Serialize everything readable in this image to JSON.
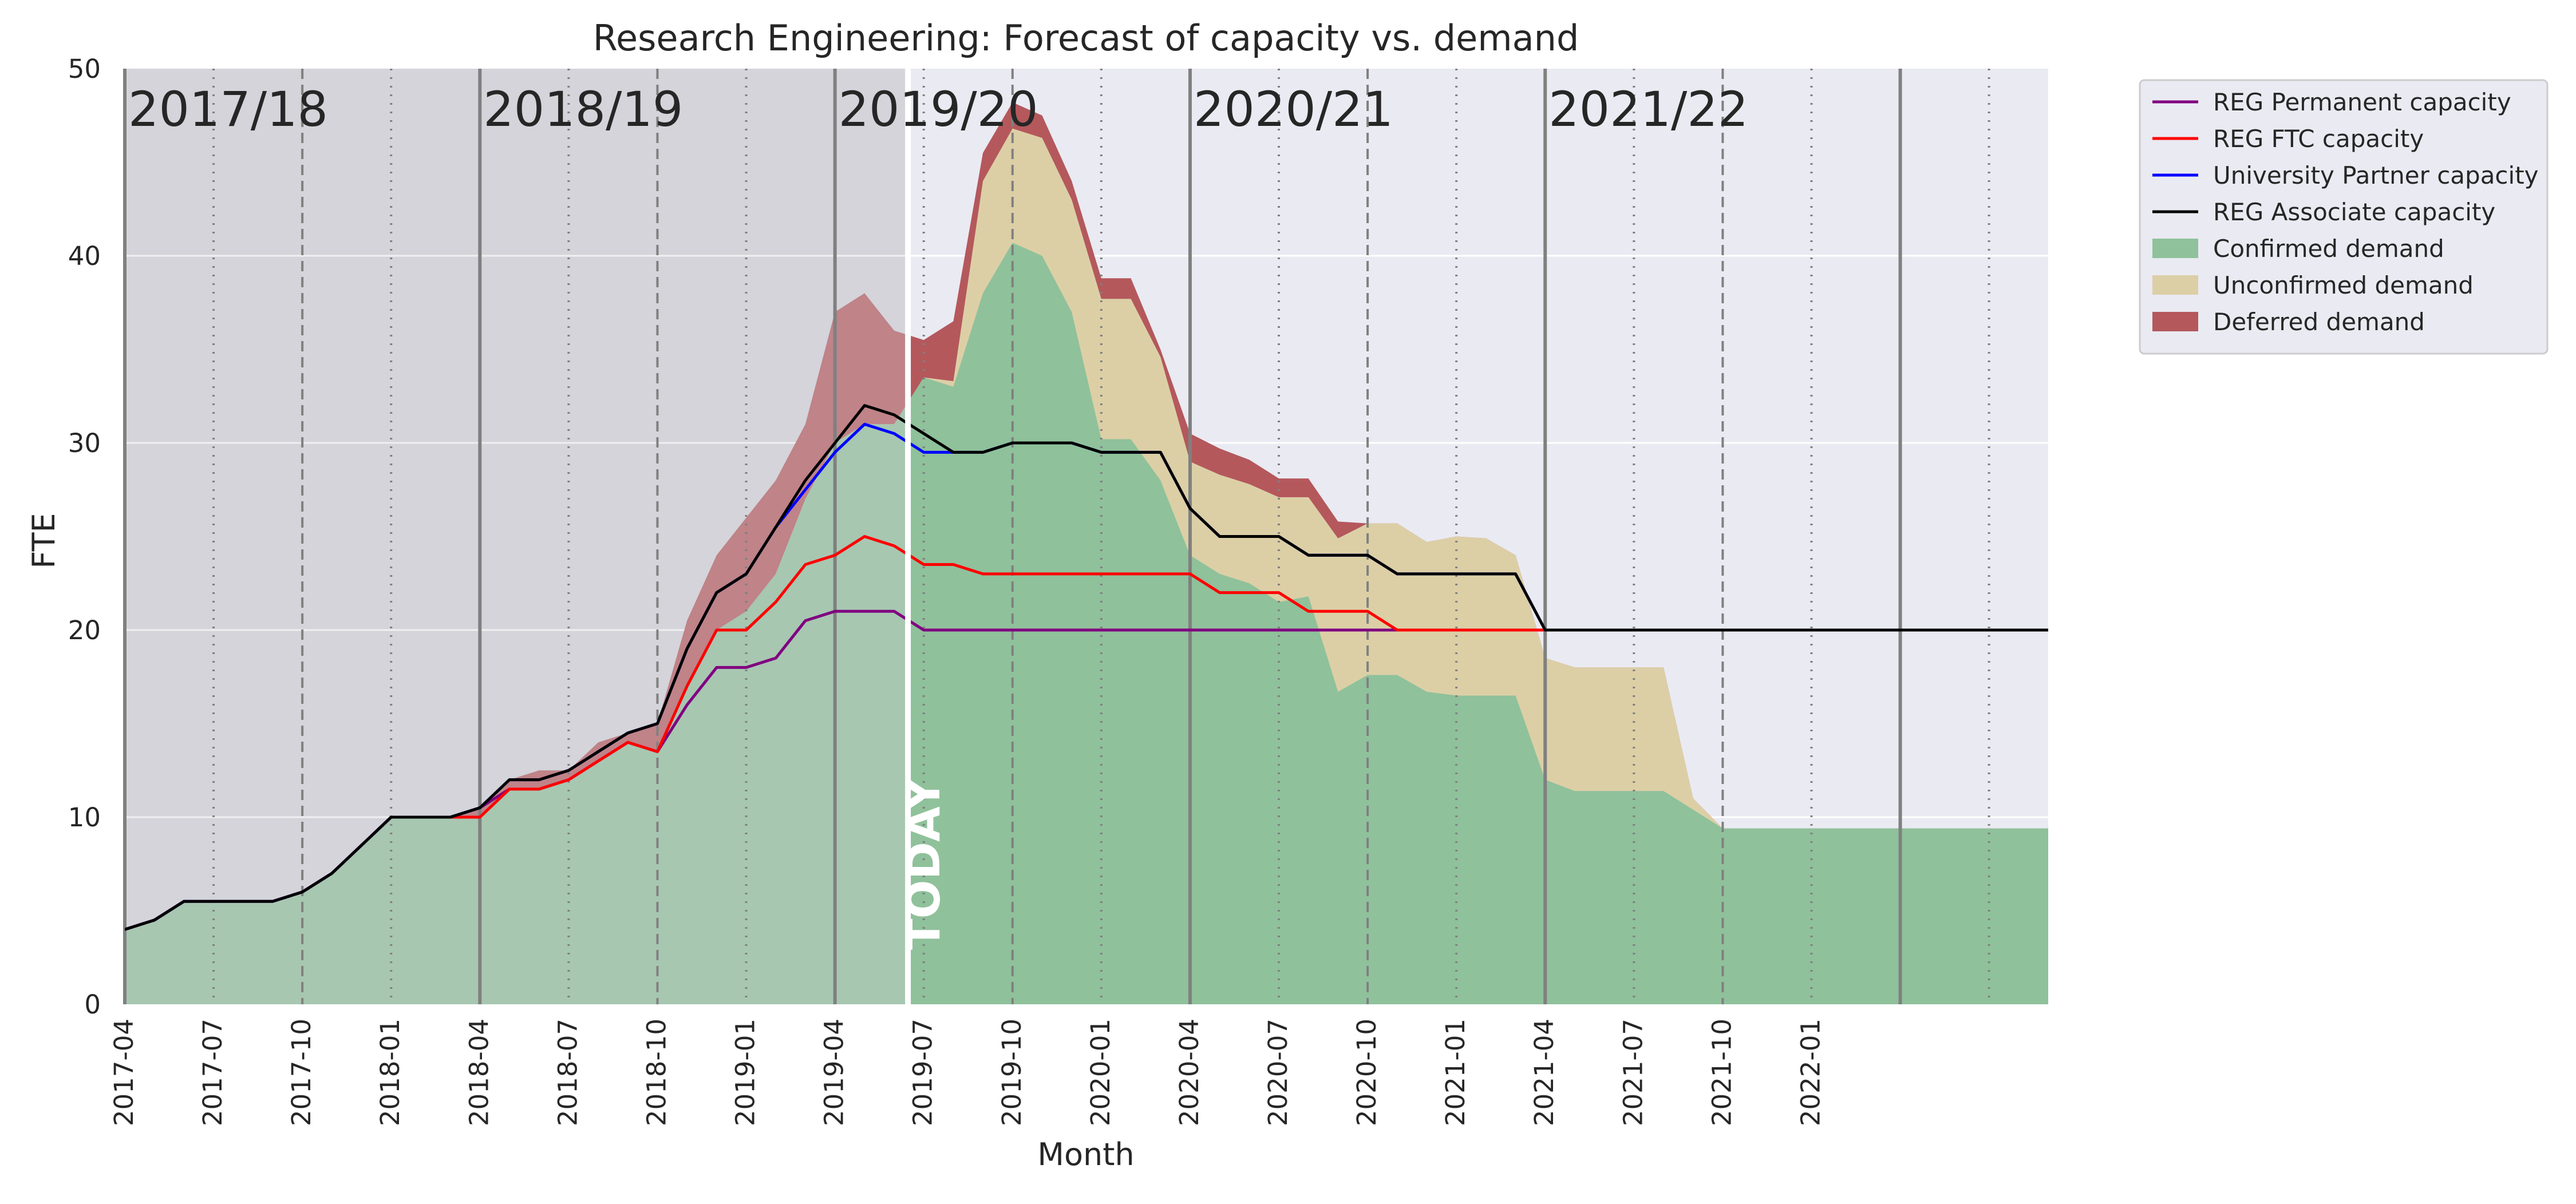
{
  "chart_data": {
    "type": "area",
    "title": "Research Engineering: Forecast of capacity vs. demand",
    "xlabel": "Month",
    "ylabel": "FTE",
    "xlim": [
      "2017-04",
      "2022-09"
    ],
    "ylim": [
      0,
      50
    ],
    "grid": true,
    "legend_position": "outside-right",
    "x_ticks": [
      "2017-04",
      "2017-07",
      "2017-10",
      "2018-01",
      "2018-04",
      "2018-07",
      "2018-10",
      "2019-01",
      "2019-04",
      "2019-07",
      "2019-10",
      "2020-01",
      "2020-04",
      "2020-07",
      "2020-10",
      "2021-01",
      "2021-04",
      "2021-07",
      "2021-10",
      "2022-01"
    ],
    "y_ticks": [
      "0",
      "10",
      "20",
      "30",
      "40",
      "50"
    ],
    "months": [
      "2017-04",
      "2017-05",
      "2017-06",
      "2017-07",
      "2017-08",
      "2017-09",
      "2017-10",
      "2017-11",
      "2017-12",
      "2018-01",
      "2018-02",
      "2018-03",
      "2018-04",
      "2018-05",
      "2018-06",
      "2018-07",
      "2018-08",
      "2018-09",
      "2018-10",
      "2018-11",
      "2018-12",
      "2019-01",
      "2019-02",
      "2019-03",
      "2019-04",
      "2019-05",
      "2019-06",
      "2019-07",
      "2019-08",
      "2019-09",
      "2019-10",
      "2019-11",
      "2019-12",
      "2020-01",
      "2020-02",
      "2020-03",
      "2020-04",
      "2020-05",
      "2020-06",
      "2020-07",
      "2020-08",
      "2020-09",
      "2020-10",
      "2020-11",
      "2020-12",
      "2021-01",
      "2021-02",
      "2021-03",
      "2021-04",
      "2021-05",
      "2021-06",
      "2021-07",
      "2021-08",
      "2021-09",
      "2021-10",
      "2021-11",
      "2021-12",
      "2022-01",
      "2022-02",
      "2022-03",
      "2022-04",
      "2022-05",
      "2022-06",
      "2022-07",
      "2022-08",
      "2022-09"
    ],
    "financial_years": [
      "2017/18",
      "2018/19",
      "2019/20",
      "2020/21",
      "2021/22"
    ],
    "today_label": "TODAY",
    "today_date": "2019-06-15",
    "colors": {
      "REG Permanent capacity": "#800080",
      "REG FTC capacity": "#ff0000",
      "University Partner capacity": "#0000ff",
      "REG Associate capacity": "#000000",
      "Confirmed demand": "#8fc19b",
      "Unconfirmed demand": "#dccfa6",
      "Deferred demand": "#b4585c",
      "past_shade": "#d4d5da",
      "plot_bg": "#eaeaf2"
    },
    "capacity_series": [
      {
        "name": "REG Permanent capacity",
        "values": [
          4,
          4.5,
          5.5,
          5.5,
          5.5,
          5.5,
          6,
          7,
          8.5,
          10,
          10,
          10,
          10.5,
          11.5,
          11.5,
          12,
          13,
          14,
          13.5,
          16,
          18,
          18,
          18.5,
          20.5,
          21,
          21,
          21,
          20,
          20,
          20,
          20,
          20,
          20,
          20,
          20,
          20,
          20,
          20,
          20,
          20,
          20,
          20,
          20,
          20,
          20,
          20,
          20,
          20,
          20,
          20,
          20,
          20,
          20,
          20,
          20,
          20,
          20,
          20,
          20,
          20,
          20,
          20,
          20,
          20,
          20,
          20
        ]
      },
      {
        "name": "REG FTC capacity",
        "values": [
          4,
          4.5,
          5.5,
          5.5,
          5.5,
          5.5,
          6,
          7,
          8.5,
          10,
          10,
          10,
          10,
          11.5,
          11.5,
          12,
          13,
          14,
          13.5,
          17,
          20,
          20,
          21.5,
          23.5,
          24,
          25,
          24.5,
          23.5,
          23.5,
          23,
          23,
          23,
          23,
          23,
          23,
          23,
          23,
          22,
          22,
          22,
          21,
          21,
          21,
          20,
          20,
          20,
          20,
          20,
          20,
          20,
          20,
          20,
          20,
          20,
          20,
          20,
          20,
          20,
          20,
          20,
          20,
          20,
          20,
          20,
          20,
          20
        ]
      },
      {
        "name": "University Partner capacity",
        "values": [
          4,
          4.5,
          5.5,
          5.5,
          5.5,
          5.5,
          6,
          7,
          8.5,
          10,
          10,
          10,
          10.5,
          12,
          12,
          12.5,
          13.5,
          14.5,
          15,
          19,
          22,
          23,
          25.5,
          27.5,
          29.5,
          31,
          30.5,
          29.5,
          29.5,
          29.5,
          30,
          30,
          30,
          29.5,
          29.5,
          29.5,
          26.5,
          25,
          25,
          25,
          24,
          24,
          24,
          23,
          23,
          23,
          23,
          23,
          20,
          20,
          20,
          20,
          20,
          20,
          20,
          20,
          20,
          20,
          20,
          20,
          20,
          20,
          20,
          20,
          20,
          20
        ]
      },
      {
        "name": "REG Associate capacity",
        "values": [
          4,
          4.5,
          5.5,
          5.5,
          5.5,
          5.5,
          6,
          7,
          8.5,
          10,
          10,
          10,
          10.5,
          12,
          12,
          12.5,
          13.5,
          14.5,
          15,
          19,
          22,
          23,
          25.5,
          28,
          30,
          32,
          31.5,
          30.5,
          29.5,
          29.5,
          30,
          30,
          30,
          29.5,
          29.5,
          29.5,
          26.5,
          25,
          25,
          25,
          24,
          24,
          24,
          23,
          23,
          23,
          23,
          23,
          20,
          20,
          20,
          20,
          20,
          20,
          20,
          20,
          20,
          20,
          20,
          20,
          20,
          20,
          20,
          20,
          20,
          20
        ]
      }
    ],
    "demand_series": [
      {
        "name": "Confirmed demand",
        "values": [
          4,
          4.5,
          5.5,
          5.5,
          5.5,
          5.5,
          6,
          7,
          8.5,
          10,
          10,
          10,
          10,
          11.5,
          11.5,
          12,
          13,
          14,
          13.5,
          17,
          20,
          21,
          23,
          27,
          30,
          31,
          31,
          33.5,
          33,
          38,
          40.7,
          40,
          37,
          30.2,
          30.2,
          28,
          24,
          23,
          22.5,
          21.5,
          21.8,
          16.7,
          17.6,
          17.6,
          16.7,
          16.5,
          16.5,
          16.5,
          12,
          11.4,
          11.4,
          11.4,
          11.4,
          10.4,
          9.4,
          9.4,
          9.4,
          9.4,
          9.4,
          9.4,
          9.4,
          9.4,
          9.4,
          9.4,
          9.4,
          9.4
        ]
      },
      {
        "name": "Unconfirmed demand",
        "values": [
          4,
          4.5,
          5.5,
          5.5,
          5.5,
          5.5,
          6,
          7,
          8.5,
          10,
          10,
          10,
          10,
          11.5,
          11.5,
          12,
          13,
          14,
          13.5,
          17,
          20,
          21,
          23,
          27,
          30,
          31,
          31,
          33.5,
          33.3,
          44,
          46.8,
          46.3,
          43,
          37.7,
          37.7,
          34.6,
          29,
          28.3,
          27.8,
          27.1,
          27.1,
          24.9,
          25.7,
          25.7,
          24.7,
          25,
          24.9,
          24,
          18.5,
          18,
          18,
          18,
          18,
          11,
          9.4,
          9.4,
          9.4,
          9.4,
          9.4,
          9.4,
          9.4,
          9.4,
          9.4,
          9.4,
          9.4,
          9.4
        ]
      },
      {
        "name": "Deferred demand",
        "values": [
          4,
          4.5,
          5.5,
          5.5,
          5.5,
          5.5,
          6,
          7,
          8.5,
          10,
          10,
          10,
          10.5,
          12,
          12.5,
          12.5,
          14,
          14.5,
          15,
          20.5,
          24,
          26,
          28,
          31,
          37,
          38,
          36,
          35.5,
          36.5,
          45.5,
          48.2,
          47.5,
          44,
          38.8,
          38.8,
          35,
          30.5,
          29.7,
          29.1,
          28.1,
          28.1,
          25.8,
          25.7,
          25.7,
          24.7,
          25,
          24.9,
          24,
          18.5,
          18,
          18,
          18,
          18,
          11,
          9.4,
          9.4,
          9.4,
          9.4,
          9.4,
          9.4,
          9.4,
          9.4,
          9.4,
          9.4,
          9.4,
          9.4
        ]
      }
    ],
    "legend": [
      {
        "name": "REG Permanent capacity",
        "kind": "line"
      },
      {
        "name": "REG FTC capacity",
        "kind": "line"
      },
      {
        "name": "University Partner capacity",
        "kind": "line"
      },
      {
        "name": "REG Associate capacity",
        "kind": "line"
      },
      {
        "name": "Confirmed demand",
        "kind": "patch"
      },
      {
        "name": "Unconfirmed demand",
        "kind": "patch"
      },
      {
        "name": "Deferred demand",
        "kind": "patch"
      }
    ]
  }
}
